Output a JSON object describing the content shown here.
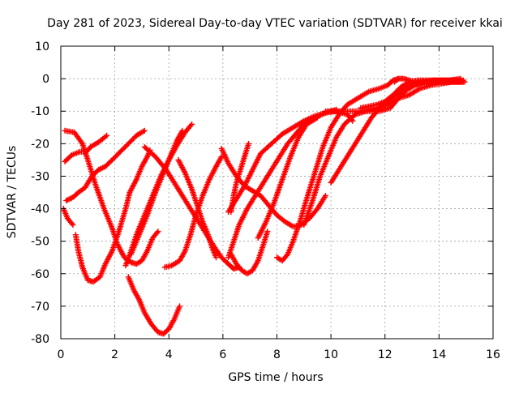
{
  "chart_data": {
    "type": "scatter",
    "title": "Day 281 of 2023, Sidereal Day-to-day VTEC variation (SDTVAR) for receiver kkai",
    "xlabel": "GPS time / hours",
    "ylabel": "SDTVAR / TECUs",
    "xlim": [
      0,
      16
    ],
    "ylim": [
      -80,
      10
    ],
    "x_ticks": [
      "0",
      "2",
      "4",
      "6",
      "8",
      "10",
      "12",
      "14",
      "16"
    ],
    "y_ticks": [
      "10",
      "0",
      "-10",
      "-20",
      "-30",
      "-40",
      "-50",
      "-60",
      "-70",
      "-80"
    ],
    "grid": true,
    "marker": "plus",
    "series_color": "#ff0000",
    "series": [
      {
        "points": [
          [
            0.15,
            -16
          ],
          [
            0.5,
            -16.5
          ],
          [
            0.8,
            -20
          ],
          [
            1.0,
            -25
          ],
          [
            1.3,
            -33
          ],
          [
            1.6,
            -40
          ],
          [
            1.9,
            -46
          ],
          [
            2.1,
            -51
          ],
          [
            2.35,
            -55
          ],
          [
            2.6,
            -56.5
          ],
          [
            2.8,
            -57
          ],
          [
            3.0,
            -56
          ],
          [
            3.2,
            -53
          ],
          [
            3.4,
            -49
          ],
          [
            3.6,
            -47
          ]
        ]
      },
      {
        "points": [
          [
            0.15,
            -25.5
          ],
          [
            0.4,
            -23.5
          ],
          [
            0.7,
            -22.5
          ],
          [
            0.95,
            -22.5
          ],
          [
            1.1,
            -21
          ],
          [
            1.4,
            -19.5
          ],
          [
            1.7,
            -17.5
          ]
        ]
      },
      {
        "points": [
          [
            0.1,
            -40
          ],
          [
            0.25,
            -43
          ],
          [
            0.45,
            -45
          ]
        ]
      },
      {
        "points": [
          [
            0.55,
            -48
          ],
          [
            0.65,
            -53
          ],
          [
            0.8,
            -58
          ],
          [
            1.0,
            -62
          ],
          [
            1.2,
            -62.5
          ],
          [
            1.45,
            -61
          ],
          [
            1.65,
            -57
          ],
          [
            1.9,
            -53
          ],
          [
            2.15,
            -47
          ],
          [
            2.4,
            -40
          ],
          [
            2.55,
            -35
          ],
          [
            2.8,
            -31
          ],
          [
            3.0,
            -27
          ],
          [
            3.2,
            -24
          ],
          [
            3.3,
            -22
          ]
        ]
      },
      {
        "points": [
          [
            0.2,
            -37.5
          ],
          [
            0.45,
            -36.5
          ],
          [
            0.65,
            -35
          ],
          [
            0.9,
            -33.5
          ],
          [
            1.15,
            -30
          ],
          [
            1.4,
            -28
          ],
          [
            1.65,
            -27
          ],
          [
            1.9,
            -25
          ],
          [
            2.2,
            -22.5
          ],
          [
            2.5,
            -20
          ],
          [
            2.8,
            -17.5
          ],
          [
            3.1,
            -16
          ]
        ]
      },
      {
        "points": [
          [
            2.4,
            -57.5
          ],
          [
            2.6,
            -53
          ],
          [
            2.8,
            -48
          ],
          [
            3.1,
            -42
          ],
          [
            3.4,
            -36
          ],
          [
            3.7,
            -30
          ],
          [
            4.0,
            -25
          ],
          [
            4.3,
            -20.5
          ],
          [
            4.6,
            -16.5
          ],
          [
            4.85,
            -14
          ]
        ]
      },
      {
        "points": [
          [
            2.5,
            -61
          ],
          [
            2.7,
            -65
          ],
          [
            2.9,
            -68
          ],
          [
            3.1,
            -72
          ],
          [
            3.35,
            -75.5
          ],
          [
            3.6,
            -78
          ],
          [
            3.8,
            -78.5
          ],
          [
            4.0,
            -77
          ],
          [
            4.2,
            -74
          ],
          [
            4.4,
            -70
          ]
        ]
      },
      {
        "points": [
          [
            2.6,
            -54
          ],
          [
            2.9,
            -48
          ],
          [
            3.2,
            -42
          ],
          [
            3.5,
            -35
          ],
          [
            3.8,
            -29
          ],
          [
            4.05,
            -24
          ],
          [
            4.3,
            -19
          ],
          [
            4.5,
            -16
          ]
        ]
      },
      {
        "points": [
          [
            3.1,
            -21
          ],
          [
            3.5,
            -24
          ],
          [
            3.9,
            -28
          ],
          [
            4.2,
            -32
          ],
          [
            4.5,
            -36
          ],
          [
            4.8,
            -40
          ],
          [
            5.1,
            -44
          ],
          [
            5.4,
            -48
          ],
          [
            5.7,
            -52
          ],
          [
            5.95,
            -55
          ],
          [
            6.2,
            -57
          ],
          [
            6.4,
            -58.5
          ],
          [
            6.6,
            -58
          ]
        ]
      },
      {
        "points": [
          [
            3.85,
            -58
          ],
          [
            4.1,
            -57.5
          ],
          [
            4.4,
            -56
          ],
          [
            4.6,
            -53
          ],
          [
            4.8,
            -48
          ],
          [
            5.0,
            -42
          ],
          [
            5.25,
            -36
          ],
          [
            5.5,
            -31
          ],
          [
            5.75,
            -27
          ],
          [
            5.95,
            -24
          ]
        ]
      },
      {
        "points": [
          [
            4.35,
            -25
          ],
          [
            4.6,
            -29
          ],
          [
            4.85,
            -34
          ],
          [
            5.05,
            -39
          ],
          [
            5.25,
            -44
          ],
          [
            5.45,
            -48
          ],
          [
            5.6,
            -52
          ],
          [
            5.75,
            -55
          ]
        ]
      },
      {
        "points": [
          [
            5.95,
            -21.5
          ],
          [
            6.2,
            -26
          ],
          [
            6.5,
            -30
          ],
          [
            6.8,
            -33
          ],
          [
            7.1,
            -34.5
          ],
          [
            7.4,
            -36
          ],
          [
            7.7,
            -39
          ],
          [
            8.0,
            -42
          ],
          [
            8.3,
            -44
          ],
          [
            8.6,
            -45.5
          ],
          [
            8.9,
            -45
          ],
          [
            9.2,
            -43
          ],
          [
            9.5,
            -40
          ],
          [
            9.8,
            -36
          ]
        ]
      },
      {
        "points": [
          [
            6.2,
            -41
          ],
          [
            6.5,
            -37
          ],
          [
            6.8,
            -33
          ],
          [
            7.1,
            -28
          ],
          [
            7.4,
            -23
          ],
          [
            7.8,
            -20
          ],
          [
            8.2,
            -17
          ],
          [
            8.6,
            -15
          ],
          [
            9.0,
            -13
          ],
          [
            9.4,
            -11.5
          ],
          [
            9.8,
            -10.5
          ],
          [
            10.2,
            -10
          ],
          [
            10.6,
            -11
          ],
          [
            10.8,
            -13
          ]
        ]
      },
      {
        "points": [
          [
            6.2,
            -55
          ],
          [
            6.4,
            -50
          ],
          [
            6.6,
            -45
          ],
          [
            6.9,
            -40
          ],
          [
            7.2,
            -36
          ],
          [
            7.5,
            -32
          ],
          [
            7.8,
            -28
          ],
          [
            8.1,
            -24
          ],
          [
            8.4,
            -20
          ],
          [
            8.7,
            -17
          ],
          [
            9.0,
            -14
          ],
          [
            9.4,
            -12
          ],
          [
            9.8,
            -10.5
          ],
          [
            10.2,
            -9.5
          ]
        ]
      },
      {
        "points": [
          [
            6.3,
            -41
          ],
          [
            6.4,
            -36
          ],
          [
            6.5,
            -32
          ],
          [
            6.65,
            -28
          ],
          [
            6.8,
            -24
          ],
          [
            6.95,
            -20
          ]
        ]
      },
      {
        "points": [
          [
            6.3,
            -54
          ],
          [
            6.5,
            -57
          ],
          [
            6.7,
            -59
          ],
          [
            6.9,
            -60
          ],
          [
            7.1,
            -59
          ],
          [
            7.3,
            -56
          ],
          [
            7.5,
            -51
          ],
          [
            7.65,
            -47
          ]
        ]
      },
      {
        "points": [
          [
            7.3,
            -49
          ],
          [
            7.6,
            -44
          ],
          [
            7.9,
            -38
          ],
          [
            8.2,
            -31
          ],
          [
            8.5,
            -24
          ],
          [
            8.8,
            -18
          ],
          [
            9.1,
            -14
          ],
          [
            9.5,
            -12
          ]
        ]
      },
      {
        "points": [
          [
            8.0,
            -55
          ],
          [
            8.2,
            -56
          ],
          [
            8.4,
            -54
          ],
          [
            8.6,
            -50
          ],
          [
            8.85,
            -44
          ],
          [
            9.1,
            -37
          ],
          [
            9.4,
            -29
          ],
          [
            9.7,
            -21
          ],
          [
            10.0,
            -15
          ],
          [
            10.3,
            -11
          ],
          [
            10.6,
            -8
          ],
          [
            11.0,
            -6
          ],
          [
            11.4,
            -4
          ],
          [
            11.8,
            -3
          ],
          [
            12.1,
            -2
          ],
          [
            12.3,
            -0.5
          ],
          [
            12.5,
            0
          ]
        ]
      },
      {
        "points": [
          [
            9.0,
            -45
          ],
          [
            9.3,
            -38
          ],
          [
            9.6,
            -30
          ],
          [
            9.9,
            -24
          ],
          [
            10.2,
            -18
          ],
          [
            10.5,
            -14
          ],
          [
            10.9,
            -11
          ],
          [
            11.3,
            -10
          ],
          [
            11.7,
            -9
          ],
          [
            12.1,
            -8
          ],
          [
            12.5,
            -6
          ],
          [
            12.9,
            -5
          ],
          [
            13.3,
            -3
          ],
          [
            13.7,
            -2
          ],
          [
            14.1,
            -1.5
          ],
          [
            14.5,
            -1
          ],
          [
            14.9,
            -1
          ]
        ]
      },
      {
        "points": [
          [
            10.0,
            -32
          ],
          [
            10.3,
            -28
          ],
          [
            10.6,
            -24
          ],
          [
            10.9,
            -20
          ],
          [
            11.2,
            -16
          ],
          [
            11.5,
            -12
          ],
          [
            11.8,
            -9
          ],
          [
            12.1,
            -7
          ],
          [
            12.4,
            -5
          ],
          [
            12.7,
            -3
          ],
          [
            13.0,
            -2
          ],
          [
            13.4,
            -1
          ],
          [
            13.8,
            -0.5
          ],
          [
            14.2,
            -0.5
          ],
          [
            14.6,
            -0.5
          ],
          [
            14.9,
            -0.5
          ]
        ]
      },
      {
        "points": [
          [
            9.8,
            -10
          ],
          [
            10.3,
            -10
          ],
          [
            10.8,
            -10
          ],
          [
            11.3,
            -10
          ],
          [
            11.8,
            -10
          ],
          [
            12.2,
            -9
          ],
          [
            12.5,
            -6
          ],
          [
            12.8,
            -3.5
          ],
          [
            13.1,
            -2
          ],
          [
            13.5,
            -1
          ],
          [
            13.9,
            -1
          ],
          [
            14.3,
            -1
          ],
          [
            14.7,
            -1
          ],
          [
            14.95,
            -1
          ]
        ]
      },
      {
        "points": [
          [
            11.1,
            -9
          ],
          [
            11.4,
            -8.5
          ],
          [
            11.7,
            -8
          ],
          [
            12.0,
            -7
          ],
          [
            12.3,
            -5
          ],
          [
            12.6,
            -2.5
          ],
          [
            12.9,
            -1
          ],
          [
            13.2,
            -0.5
          ],
          [
            13.6,
            -0.5
          ],
          [
            14.0,
            -0.5
          ],
          [
            14.4,
            -0.5
          ],
          [
            14.8,
            0
          ]
        ]
      },
      {
        "points": [
          [
            12.35,
            -1
          ],
          [
            12.5,
            0
          ],
          [
            12.7,
            0
          ],
          [
            12.9,
            -0.5
          ],
          [
            13.2,
            -1
          ],
          [
            13.6,
            -1
          ],
          [
            14.0,
            -1
          ],
          [
            14.4,
            -1
          ],
          [
            14.8,
            -1
          ]
        ]
      }
    ]
  }
}
